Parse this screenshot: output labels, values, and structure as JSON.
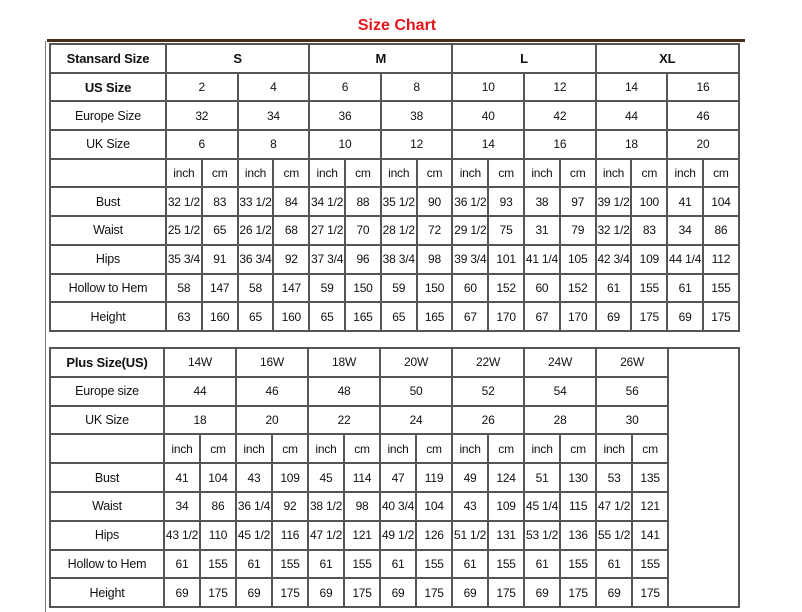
{
  "title": "Size Chart",
  "standard": {
    "header_label": "Stansard Size",
    "groups": [
      "S",
      "M",
      "L",
      "XL"
    ],
    "size_rows": [
      {
        "label": "US Size",
        "bold": true,
        "values": [
          "2",
          "4",
          "6",
          "8",
          "10",
          "12",
          "14",
          "16"
        ]
      },
      {
        "label": "Europe Size",
        "values": [
          "32",
          "34",
          "36",
          "38",
          "40",
          "42",
          "44",
          "46"
        ]
      },
      {
        "label": "UK Size",
        "values": [
          "6",
          "8",
          "10",
          "12",
          "14",
          "16",
          "18",
          "20"
        ]
      }
    ],
    "units": [
      "inch",
      "cm"
    ],
    "measure_rows": [
      {
        "label": "Bust",
        "values": [
          "32 1/2",
          "83",
          "33 1/2",
          "84",
          "34 1/2",
          "88",
          "35 1/2",
          "90",
          "36 1/2",
          "93",
          "38",
          "97",
          "39 1/2",
          "100",
          "41",
          "104"
        ]
      },
      {
        "label": "Waist",
        "values": [
          "25 1/2",
          "65",
          "26 1/2",
          "68",
          "27 1/2",
          "70",
          "28 1/2",
          "72",
          "29 1/2",
          "75",
          "31",
          "79",
          "32 1/2",
          "83",
          "34",
          "86"
        ]
      },
      {
        "label": "Hips",
        "values": [
          "35 3/4",
          "91",
          "36 3/4",
          "92",
          "37 3/4",
          "96",
          "38 3/4",
          "98",
          "39 3/4",
          "101",
          "41 1/4",
          "105",
          "42 3/4",
          "109",
          "44 1/4",
          "112"
        ]
      },
      {
        "label": "Hollow to Hem",
        "values": [
          "58",
          "147",
          "58",
          "147",
          "59",
          "150",
          "59",
          "150",
          "60",
          "152",
          "60",
          "152",
          "61",
          "155",
          "61",
          "155"
        ]
      },
      {
        "label": "Height",
        "values": [
          "63",
          "160",
          "65",
          "160",
          "65",
          "165",
          "65",
          "165",
          "67",
          "170",
          "67",
          "170",
          "69",
          "175",
          "69",
          "175"
        ]
      }
    ]
  },
  "plus": {
    "header_label": "Plus Size(US)",
    "sizes": [
      "14W",
      "16W",
      "18W",
      "20W",
      "22W",
      "24W",
      "26W"
    ],
    "size_rows": [
      {
        "label": "Europe size",
        "values": [
          "44",
          "46",
          "48",
          "50",
          "52",
          "54",
          "56"
        ]
      },
      {
        "label": "UK Size",
        "values": [
          "18",
          "20",
          "22",
          "24",
          "26",
          "28",
          "30"
        ]
      }
    ],
    "units": [
      "inch",
      "cm"
    ],
    "measure_rows": [
      {
        "label": "Bust",
        "values": [
          "41",
          "104",
          "43",
          "109",
          "45",
          "114",
          "47",
          "119",
          "49",
          "124",
          "51",
          "130",
          "53",
          "135"
        ]
      },
      {
        "label": "Waist",
        "values": [
          "34",
          "86",
          "36 1/4",
          "92",
          "38 1/2",
          "98",
          "40 3/4",
          "104",
          "43",
          "109",
          "45 1/4",
          "115",
          "47 1/2",
          "121"
        ]
      },
      {
        "label": "Hips",
        "values": [
          "43 1/2",
          "110",
          "45 1/2",
          "116",
          "47 1/2",
          "121",
          "49 1/2",
          "126",
          "51 1/2",
          "131",
          "53 1/2",
          "136",
          "55 1/2",
          "141"
        ]
      },
      {
        "label": "Hollow to Hem",
        "values": [
          "61",
          "155",
          "61",
          "155",
          "61",
          "155",
          "61",
          "155",
          "61",
          "155",
          "61",
          "155",
          "61",
          "155"
        ]
      },
      {
        "label": "Height",
        "values": [
          "69",
          "175",
          "69",
          "175",
          "69",
          "175",
          "69",
          "175",
          "69",
          "175",
          "69",
          "175",
          "69",
          "175"
        ]
      }
    ]
  }
}
